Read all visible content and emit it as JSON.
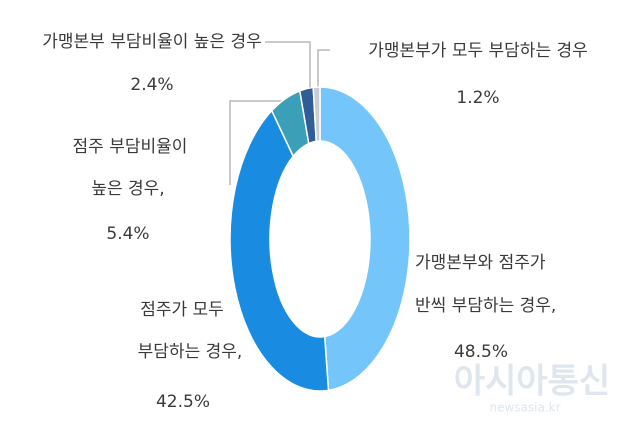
{
  "chart_data": {
    "type": "donut",
    "categories": [
      [
        "가맹본부와 점주가",
        "반씩 부담하는 경우,"
      ],
      [
        "점주가 모두",
        "부담하는 경우,"
      ],
      [
        "점주 부담비율이",
        "높은 경우,"
      ],
      [
        "가맹본부 부담비율이 높은 경우"
      ],
      [
        "가맹본부가 모두 부담하는 경우"
      ]
    ],
    "values": [
      48.5,
      42.5,
      5.4,
      2.4,
      1.2
    ],
    "value_labels": [
      "48.5%",
      "42.5%",
      "5.4%",
      "2.4%",
      "1.2%"
    ],
    "colors": [
      "#74c6fa",
      "#198be0",
      "#3c9fb8",
      "#2e5d97",
      "#c9cdd2"
    ],
    "watermark": [
      "아시아통신",
      "newsasia.kr"
    ]
  }
}
